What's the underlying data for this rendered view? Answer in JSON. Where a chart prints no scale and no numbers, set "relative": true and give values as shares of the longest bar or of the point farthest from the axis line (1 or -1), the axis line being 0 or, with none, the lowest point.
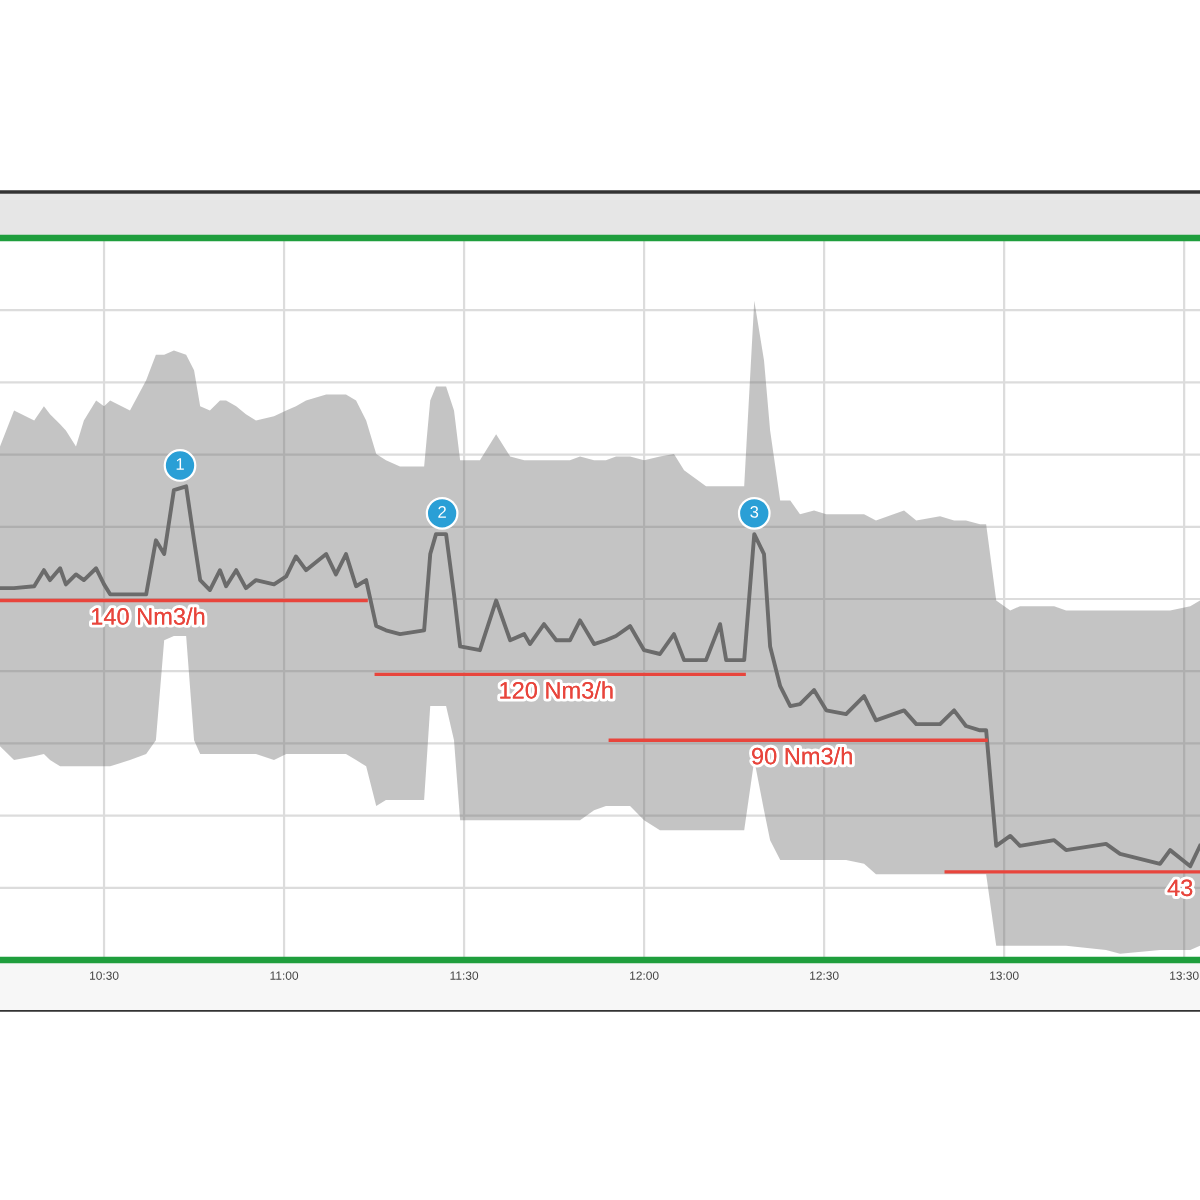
{
  "chart_data": {
    "type": "line",
    "relative": true,
    "grid": true,
    "tick_labels": "x",
    "xlim": [
      10.211,
      13.544
    ],
    "xticks": [
      {
        "value": 10.5,
        "label": "10:30"
      },
      {
        "value": 11.0,
        "label": "11:00"
      },
      {
        "value": 11.5,
        "label": "11:30"
      },
      {
        "value": 12.0,
        "label": "12:00"
      },
      {
        "value": 12.5,
        "label": "12:30"
      },
      {
        "value": 13.0,
        "label": "13:00"
      },
      {
        "value": 13.5,
        "label": "13:30"
      }
    ],
    "series": [
      {
        "color": "#6b6b6b",
        "x": [
          10.211,
          10.25,
          10.306,
          10.333,
          10.35,
          10.378,
          10.394,
          10.422,
          10.444,
          10.478,
          10.5,
          10.517,
          10.572,
          10.617,
          10.644,
          10.667,
          10.694,
          10.728,
          10.75,
          10.767,
          10.794,
          10.822,
          10.839,
          10.867,
          10.894,
          10.922,
          10.972,
          11.006,
          11.033,
          11.061,
          11.117,
          11.144,
          11.172,
          11.2,
          11.228,
          11.256,
          11.283,
          11.322,
          11.389,
          11.406,
          11.422,
          11.45,
          11.472,
          11.489,
          11.544,
          11.589,
          11.628,
          11.667,
          11.683,
          11.722,
          11.756,
          11.794,
          11.822,
          11.861,
          11.894,
          11.922,
          11.961,
          12.0,
          12.044,
          12.083,
          12.111,
          12.172,
          12.211,
          12.228,
          12.278,
          12.306,
          12.333,
          12.35,
          12.378,
          12.406,
          12.433,
          12.472,
          12.506,
          12.561,
          12.611,
          12.644,
          12.722,
          12.756,
          12.822,
          12.861,
          12.894,
          12.933,
          12.95,
          12.978,
          13.017,
          13.044,
          13.139,
          13.172,
          13.283,
          13.322,
          13.433,
          13.461,
          13.517,
          13.544
        ],
        "values": [
          0.785,
          0.785,
          0.789,
          0.823,
          0.802,
          0.827,
          0.793,
          0.814,
          0.802,
          0.827,
          0.793,
          0.772,
          0.772,
          0.772,
          0.886,
          0.857,
          0.992,
          1.0,
          0.886,
          0.802,
          0.781,
          0.823,
          0.789,
          0.823,
          0.785,
          0.802,
          0.793,
          0.81,
          0.852,
          0.823,
          0.857,
          0.814,
          0.857,
          0.789,
          0.802,
          0.705,
          0.696,
          0.688,
          0.696,
          0.857,
          0.899,
          0.899,
          0.772,
          0.662,
          0.654,
          0.759,
          0.675,
          0.688,
          0.667,
          0.709,
          0.675,
          0.675,
          0.717,
          0.667,
          0.675,
          0.684,
          0.705,
          0.654,
          0.646,
          0.688,
          0.633,
          0.633,
          0.709,
          0.633,
          0.633,
          0.899,
          0.857,
          0.662,
          0.578,
          0.536,
          0.54,
          0.57,
          0.527,
          0.519,
          0.557,
          0.506,
          0.527,
          0.498,
          0.498,
          0.527,
          0.494,
          0.485,
          0.485,
          0.241,
          0.262,
          0.241,
          0.253,
          0.232,
          0.245,
          0.224,
          0.203,
          0.232,
          0.198,
          0.241
        ],
        "upper": [
          1.084,
          1.16,
          1.139,
          1.169,
          1.152,
          1.131,
          1.118,
          1.084,
          1.139,
          1.181,
          1.169,
          1.181,
          1.16,
          1.224,
          1.278,
          1.278,
          1.287,
          1.278,
          1.245,
          1.169,
          1.16,
          1.181,
          1.181,
          1.169,
          1.152,
          1.139,
          1.148,
          1.16,
          1.169,
          1.181,
          1.194,
          1.194,
          1.194,
          1.181,
          1.139,
          1.068,
          1.055,
          1.042,
          1.042,
          1.181,
          1.211,
          1.211,
          1.16,
          1.055,
          1.055,
          1.11,
          1.063,
          1.055,
          1.055,
          1.055,
          1.055,
          1.055,
          1.063,
          1.055,
          1.055,
          1.063,
          1.063,
          1.055,
          1.063,
          1.068,
          1.034,
          1.0,
          1.0,
          1.0,
          1.0,
          1.392,
          1.266,
          1.118,
          0.97,
          0.97,
          0.941,
          0.949,
          0.941,
          0.941,
          0.941,
          0.928,
          0.949,
          0.928,
          0.937,
          0.928,
          0.928,
          0.92,
          0.92,
          0.759,
          0.738,
          0.747,
          0.747,
          0.738,
          0.738,
          0.738,
          0.738,
          0.738,
          0.747,
          0.759
        ],
        "lower": [
          0.451,
          0.422,
          0.43,
          0.435,
          0.422,
          0.409,
          0.409,
          0.409,
          0.409,
          0.409,
          0.409,
          0.409,
          0.422,
          0.435,
          0.464,
          0.675,
          0.684,
          0.684,
          0.464,
          0.435,
          0.435,
          0.435,
          0.435,
          0.435,
          0.435,
          0.435,
          0.422,
          0.435,
          0.435,
          0.435,
          0.435,
          0.435,
          0.435,
          0.422,
          0.409,
          0.325,
          0.338,
          0.338,
          0.338,
          0.536,
          0.536,
          0.536,
          0.464,
          0.295,
          0.295,
          0.295,
          0.295,
          0.295,
          0.295,
          0.295,
          0.295,
          0.295,
          0.295,
          0.316,
          0.325,
          0.325,
          0.325,
          0.295,
          0.274,
          0.274,
          0.274,
          0.274,
          0.274,
          0.274,
          0.274,
          0.422,
          0.316,
          0.253,
          0.211,
          0.211,
          0.211,
          0.211,
          0.211,
          0.211,
          0.203,
          0.181,
          0.181,
          0.181,
          0.181,
          0.181,
          0.181,
          0.181,
          0.181,
          0.03,
          0.03,
          0.03,
          0.03,
          0.03,
          0.021,
          0.013,
          0.021,
          0.021,
          0.021,
          0.03
        ]
      },
      {
        "color": "#e8453c",
        "x": [
          10.211,
          11.228
        ],
        "values": [
          0.759,
          0.759
        ]
      },
      {
        "color": "#e8453c",
        "x": [
          11.256,
          12.278
        ],
        "values": [
          0.603,
          0.603
        ]
      },
      {
        "color": "#e8453c",
        "x": [
          11.906,
          12.95
        ],
        "values": [
          0.464,
          0.464
        ]
      },
      {
        "color": "#e8453c",
        "x": [
          12.839,
          13.544
        ],
        "values": [
          0.186,
          0.186
        ]
      }
    ],
    "annotations": [
      {
        "text": "1",
        "x": 10.711,
        "y": 1.0
      },
      {
        "text": "2",
        "x": 11.439,
        "y": 0.899
      },
      {
        "text": "3",
        "x": 12.306,
        "y": 0.899
      },
      {
        "text": "140 Nm3/h",
        "x": 10.622,
        "y": 0.759
      },
      {
        "text": "120 Nm3/h",
        "x": 11.756,
        "y": 0.603
      },
      {
        "text": "90 Nm3/h",
        "x": 12.439,
        "y": 0.464
      },
      {
        "text": "43",
        "x": 13.489,
        "y": 0.186
      }
    ]
  }
}
